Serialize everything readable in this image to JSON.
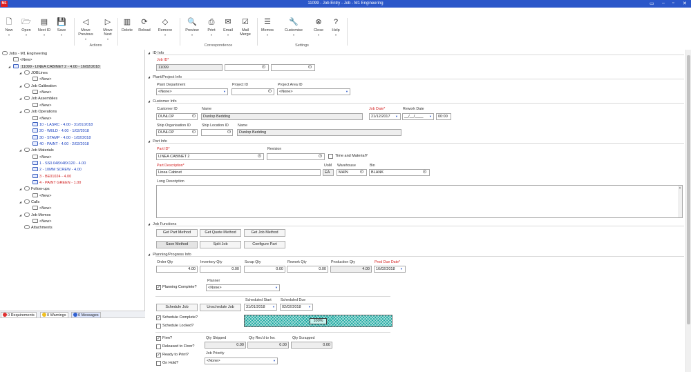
{
  "window": {
    "title": "11099 - Job Entry - Job - M1 Engineering",
    "logo": "M1",
    "controls": [
      "minimize-icon",
      "restore-icon",
      "maximize-icon",
      "close-icon"
    ]
  },
  "ribbon": {
    "buttons": [
      {
        "id": "new",
        "label": "New",
        "icon": "new-doc-icon",
        "glyph": "🗋",
        "arrow": "▾"
      },
      {
        "id": "open",
        "label": "Open",
        "icon": "open-icon",
        "glyph": "🗁",
        "arrow": "▾"
      },
      {
        "id": "next-id",
        "label": "Next ID",
        "icon": "next-id-icon",
        "glyph": "▤",
        "arrow": "▾"
      },
      {
        "id": "save",
        "label": "Save",
        "icon": "save-icon",
        "glyph": "💾",
        "arrow": "▾"
      },
      {
        "id": "move-previous",
        "label": "Move Previous",
        "icon": "left-arrow-icon",
        "glyph": "◁",
        "arrow": "▾"
      },
      {
        "id": "move-next",
        "label": "Move Next",
        "icon": "right-arrow-icon",
        "glyph": "▷",
        "arrow": "▾"
      },
      {
        "id": "delete",
        "label": "Delete",
        "icon": "delete-icon",
        "glyph": "▥"
      },
      {
        "id": "reload",
        "label": "Reload",
        "icon": "reload-icon",
        "glyph": "⟳"
      },
      {
        "id": "remove",
        "label": "Remove",
        "icon": "eraser-icon",
        "glyph": "◇",
        "arrow": "▾"
      },
      {
        "id": "preview",
        "label": "Preview",
        "icon": "preview-icon",
        "glyph": "🔍",
        "arrow": "▾"
      },
      {
        "id": "print",
        "label": "Print",
        "icon": "print-icon",
        "glyph": "⎙",
        "arrow": "▾"
      },
      {
        "id": "email",
        "label": "Email",
        "icon": "email-icon",
        "glyph": "✉",
        "arrow": "▾"
      },
      {
        "id": "mail-merge",
        "label": "Mail Merge",
        "icon": "mail-merge-icon",
        "glyph": "☑"
      },
      {
        "id": "memos",
        "label": "Memos",
        "icon": "memos-icon",
        "glyph": "☰",
        "arrow": "▾"
      },
      {
        "id": "customise",
        "label": "Customise",
        "icon": "wrench-icon",
        "glyph": "🔧",
        "arrow": "▾"
      },
      {
        "id": "close",
        "label": "Close",
        "icon": "close-circle-icon",
        "glyph": "⊗",
        "arrow": "▾"
      },
      {
        "id": "help",
        "label": "Help",
        "icon": "help-icon",
        "glyph": "?",
        "arrow": "▾"
      }
    ],
    "groups": [
      "Actions",
      "Correspondence",
      "Settings"
    ]
  },
  "tree": [
    {
      "label": "Jobs - M1 Engineering",
      "icon": "binoculars-icon",
      "toggle": "◢"
    },
    {
      "label": "<New>",
      "icon": "new-item-icon"
    },
    {
      "label": "11099 - LINEA CABINET 2 - 4.00 - 16/02/2018",
      "icon": "document-icon",
      "toggle": "◢",
      "selected": true
    },
    {
      "label": "JOBLines",
      "icon": "binoculars-icon",
      "toggle": "◢"
    },
    {
      "label": "<New>",
      "icon": "new-item-icon"
    },
    {
      "label": "Job Calibration",
      "icon": "binoculars-icon",
      "toggle": "◢"
    },
    {
      "label": "<New>",
      "icon": "new-item-icon"
    },
    {
      "label": "Job Assemblies",
      "icon": "binoculars-icon",
      "toggle": "◢"
    },
    {
      "label": "<New>",
      "icon": "new-item-icon"
    },
    {
      "label": "Job Operations",
      "icon": "binoculars-icon",
      "toggle": "◢"
    },
    {
      "label": "<New>",
      "icon": "new-item-icon"
    },
    {
      "label": "10 - LASRC - 4.00 - 31/01/2018",
      "icon": "document-icon",
      "color": "blue"
    },
    {
      "label": "20 - WELD - 4.00 - 1/02/2018",
      "icon": "document-icon",
      "color": "blue"
    },
    {
      "label": "30 - STAMP - 4.00 - 1/02/2018",
      "icon": "document-icon",
      "color": "blue"
    },
    {
      "label": "40 - PAINT - 4.00 - 2/02/2018",
      "icon": "document-icon",
      "color": "blue"
    },
    {
      "label": "Job Materials",
      "icon": "binoculars-icon",
      "toggle": "◢"
    },
    {
      "label": "<New>",
      "icon": "new-item-icon"
    },
    {
      "label": "1 - SS0.048X48X120 - 4.00",
      "icon": "document-icon",
      "color": "blue"
    },
    {
      "label": "2 - 10MM SCREW - 4.00",
      "icon": "document-icon",
      "color": "blue"
    },
    {
      "label": "3 - BE01024 - 4.00",
      "icon": "document-icon",
      "color": "red"
    },
    {
      "label": "4 - PAINT GREEN - 1.00",
      "icon": "document-icon",
      "color": "red"
    },
    {
      "label": "Follow-ups",
      "icon": "binoculars-icon",
      "toggle": "◢"
    },
    {
      "label": "<New>",
      "icon": "new-item-icon"
    },
    {
      "label": "Calls",
      "icon": "binoculars-icon",
      "toggle": "◢"
    },
    {
      "label": "<New>",
      "icon": "new-item-icon"
    },
    {
      "label": "Job Memos",
      "icon": "binoculars-icon",
      "toggle": "◢"
    },
    {
      "label": "<New>",
      "icon": "new-item-icon"
    },
    {
      "label": "Attachments",
      "icon": "binoculars-icon"
    }
  ],
  "messages": {
    "requirements": "0 Requirements",
    "warnings": "0 Warnings",
    "messages": "0 Messages"
  },
  "sections": {
    "id_info": "ID Info",
    "plant": "Plant/Project Info",
    "customer": "Customer Info",
    "part": "Part Info",
    "functions": "Job Functions",
    "planning": "Planning/Progress Info"
  },
  "id_info": {
    "job_id_label": "Job ID*",
    "job_id": "11099",
    "field2": "",
    "field3": ""
  },
  "plant": {
    "plant_department_label": "Plant Department",
    "plant_department": "<None>",
    "project_id_label": "Project ID",
    "project_id": "",
    "project_area_label": "Project Area ID",
    "project_area": "<None>"
  },
  "customer": {
    "customer_id_label": "Customer ID",
    "customer_id": "DUNLOP",
    "name_label": "Name",
    "name": "Dunlop Bedding",
    "job_date_label": "Job Date*",
    "job_date": "21/12/2017",
    "rework_date_label": "Rework Date",
    "rework_date": "__/__/____",
    "rework_time": "00:00",
    "ship_org_label": "Ship Organisation ID",
    "ship_org": "DUNLOP",
    "ship_location_label": "Ship Location ID",
    "ship_location": "",
    "ship_name_label": "Name",
    "ship_name": "Dunlop Bedding"
  },
  "part": {
    "part_id_label": "Part ID*",
    "part_id": "LINEA CABINET 2",
    "revision_label": "Revision",
    "revision": "",
    "time_material_label": "Time and Material?",
    "desc_label": "Part Description*",
    "desc": "Linea Cabinet",
    "uom_label": "UoM",
    "uom": "EA",
    "warehouse_label": "Warehouse",
    "warehouse": "MAIN",
    "bin_label": "Bin",
    "bin": "BLANK",
    "long_desc_label": "Long Description",
    "long_desc": ""
  },
  "functions": {
    "get_part_method": "Get Part Method",
    "get_quote_method": "Get Quote Method",
    "get_job_method": "Get Job Method",
    "save_method": "Save Method",
    "split_job": "Split Job",
    "configure_part": "Configure Part"
  },
  "planning": {
    "order_qty_label": "Order Qty",
    "order_qty": "4.00",
    "inventory_qty_label": "Inventory Qty",
    "inventory_qty": "0.00",
    "scrap_qty_label": "Scrap Qty",
    "scrap_qty": "0.00",
    "rework_qty_label": "Rework Qty",
    "rework_qty": "0.00",
    "production_qty_label": "Production Qty",
    "production_qty": "4.00",
    "prod_due_label": "Prod Due Date*",
    "prod_due": "16/02/2018",
    "planning_complete_label": "Planning Complete?",
    "planner_label": "Planner",
    "planner": "<None>",
    "schedule_job": "Schedule Job",
    "unschedule_job": "Unschedule Job",
    "sched_start_label": "Scheduled Start",
    "sched_start": "31/01/2018",
    "sched_due_label": "Scheduled Due",
    "sched_due": "02/02/2018",
    "schedule_complete_label": "Schedule Complete?",
    "schedule_locked_label": "Schedule Locked?",
    "progress_text": "100%",
    "progress_value": 100,
    "firm_label": "Firm?",
    "qty_shipped_label": "Qty Shipped",
    "qty_shipped": "0.00",
    "qty_recd_label": "Qty Rec'd to Inv.",
    "qty_recd": "0.00",
    "qty_scrapped_label": "Qty Scrapped",
    "qty_scrapped": "0.00",
    "released_label": "Released to Floor?",
    "ready_label": "Ready to Print?",
    "priority_label": "Job Priority",
    "priority": "<None>",
    "on_hold_label": "On Hold?"
  },
  "colors": {
    "titlebar": "#2b57c9",
    "required": "#d42020",
    "progress": "#1aa8a0",
    "tree_blue": "#1a40c0",
    "tree_red": "#d02020"
  }
}
